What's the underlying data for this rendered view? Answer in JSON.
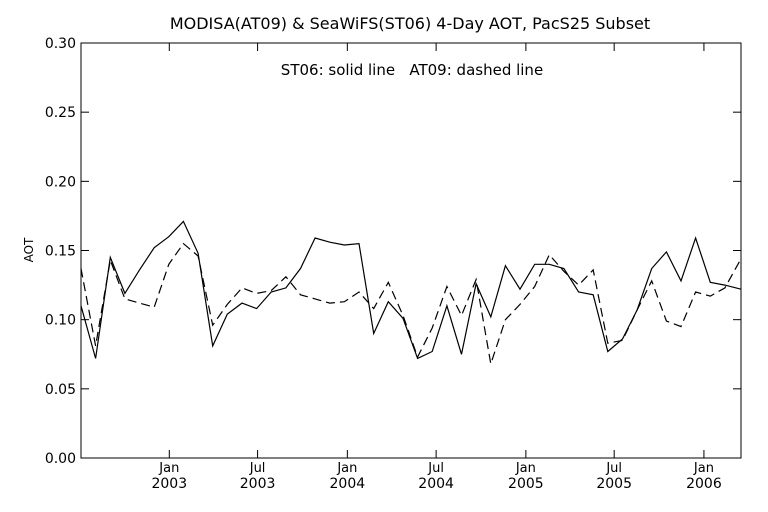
{
  "chart_data": {
    "type": "line",
    "title": "MODISA(AT09) & SeaWiFS(ST06) 4-Day AOT, PacS25 Subset",
    "annotation": "ST06: solid line   AT09: dashed line",
    "xlabel": "",
    "ylabel": "AOT",
    "ylim": [
      0.0,
      0.3
    ],
    "yticks": [
      "0.00",
      "0.05",
      "0.10",
      "0.15",
      "0.20",
      "0.25",
      "0.30"
    ],
    "xlim": [
      "2002-07-04",
      "2006-03-18"
    ],
    "xticks": [
      {
        "month": "Jan",
        "year": "2003",
        "date": "2003-01-01"
      },
      {
        "month": "Jul",
        "year": "2003",
        "date": "2003-07-01"
      },
      {
        "month": "Jan",
        "year": "2004",
        "date": "2004-01-01"
      },
      {
        "month": "Jul",
        "year": "2004",
        "date": "2004-07-01"
      },
      {
        "month": "Jan",
        "year": "2005",
        "date": "2005-01-01"
      },
      {
        "month": "Jul",
        "year": "2005",
        "date": "2005-07-01"
      },
      {
        "month": "Jan",
        "year": "2006",
        "date": "2006-01-01"
      }
    ],
    "grid": false,
    "series": [
      {
        "name": "ST06",
        "style": "solid",
        "points": [
          [
            "2002-07-04",
            0.11
          ],
          [
            "2002-08-03",
            0.072
          ],
          [
            "2002-09-02",
            0.145
          ],
          [
            "2002-10-02",
            0.119
          ],
          [
            "2002-11-01",
            0.136
          ],
          [
            "2002-12-01",
            0.152
          ],
          [
            "2002-12-31",
            0.16
          ],
          [
            "2003-01-30",
            0.171
          ],
          [
            "2003-03-01",
            0.148
          ],
          [
            "2003-03-31",
            0.081
          ],
          [
            "2003-04-30",
            0.104
          ],
          [
            "2003-05-30",
            0.112
          ],
          [
            "2003-06-29",
            0.108
          ],
          [
            "2003-07-29",
            0.12
          ],
          [
            "2003-08-28",
            0.123
          ],
          [
            "2003-09-27",
            0.137
          ],
          [
            "2003-10-27",
            0.159
          ],
          [
            "2003-11-26",
            0.156
          ],
          [
            "2003-12-26",
            0.154
          ],
          [
            "2004-01-25",
            0.155
          ],
          [
            "2004-02-24",
            0.09
          ],
          [
            "2004-03-25",
            0.113
          ],
          [
            "2004-04-24",
            0.101
          ],
          [
            "2004-05-24",
            0.072
          ],
          [
            "2004-06-23",
            0.077
          ],
          [
            "2004-07-23",
            0.11
          ],
          [
            "2004-08-22",
            0.075
          ],
          [
            "2004-09-21",
            0.126
          ],
          [
            "2004-10-21",
            0.102
          ],
          [
            "2004-11-20",
            0.139
          ],
          [
            "2004-12-20",
            0.122
          ],
          [
            "2005-01-19",
            0.14
          ],
          [
            "2005-02-18",
            0.14
          ],
          [
            "2005-03-20",
            0.137
          ],
          [
            "2005-04-19",
            0.12
          ],
          [
            "2005-05-19",
            0.118
          ],
          [
            "2005-06-18",
            0.077
          ],
          [
            "2005-07-18",
            0.086
          ],
          [
            "2005-08-17",
            0.107
          ],
          [
            "2005-09-16",
            0.137
          ],
          [
            "2005-10-16",
            0.149
          ],
          [
            "2005-11-15",
            0.128
          ],
          [
            "2005-12-15",
            0.159
          ],
          [
            "2006-01-14",
            0.127
          ],
          [
            "2006-02-13",
            0.125
          ],
          [
            "2006-03-18",
            0.122
          ]
        ]
      },
      {
        "name": "AT09",
        "style": "dashed",
        "points": [
          [
            "2002-07-04",
            0.137
          ],
          [
            "2002-08-03",
            0.081
          ],
          [
            "2002-09-02",
            0.143
          ],
          [
            "2002-10-02",
            0.115
          ],
          [
            "2002-11-01",
            0.112
          ],
          [
            "2002-12-01",
            0.109
          ],
          [
            "2002-12-31",
            0.14
          ],
          [
            "2003-01-30",
            0.155
          ],
          [
            "2003-03-01",
            0.146
          ],
          [
            "2003-03-31",
            0.096
          ],
          [
            "2003-04-30",
            0.111
          ],
          [
            "2003-05-30",
            0.123
          ],
          [
            "2003-06-29",
            0.119
          ],
          [
            "2003-07-29",
            0.121
          ],
          [
            "2003-08-28",
            0.131
          ],
          [
            "2003-09-27",
            0.118
          ],
          [
            "2003-10-27",
            0.115
          ],
          [
            "2003-11-26",
            0.112
          ],
          [
            "2003-12-26",
            0.113
          ],
          [
            "2004-01-25",
            0.12
          ],
          [
            "2004-02-24",
            0.108
          ],
          [
            "2004-03-25",
            0.127
          ],
          [
            "2004-04-24",
            0.103
          ],
          [
            "2004-05-24",
            0.073
          ],
          [
            "2004-06-23",
            0.094
          ],
          [
            "2004-07-23",
            0.124
          ],
          [
            "2004-08-22",
            0.103
          ],
          [
            "2004-09-21",
            0.129
          ],
          [
            "2004-10-21",
            0.068
          ],
          [
            "2004-11-20",
            0.1
          ],
          [
            "2004-12-20",
            0.111
          ],
          [
            "2005-01-19",
            0.124
          ],
          [
            "2005-02-18",
            0.147
          ],
          [
            "2005-03-20",
            0.135
          ],
          [
            "2005-04-19",
            0.125
          ],
          [
            "2005-05-19",
            0.136
          ],
          [
            "2005-06-18",
            0.083
          ],
          [
            "2005-07-18",
            0.085
          ],
          [
            "2005-08-17",
            0.107
          ],
          [
            "2005-09-16",
            0.128
          ],
          [
            "2005-10-16",
            0.099
          ],
          [
            "2005-11-15",
            0.095
          ],
          [
            "2005-12-15",
            0.12
          ],
          [
            "2006-01-14",
            0.117
          ],
          [
            "2006-02-13",
            0.123
          ],
          [
            "2006-03-18",
            0.144
          ]
        ]
      }
    ]
  }
}
